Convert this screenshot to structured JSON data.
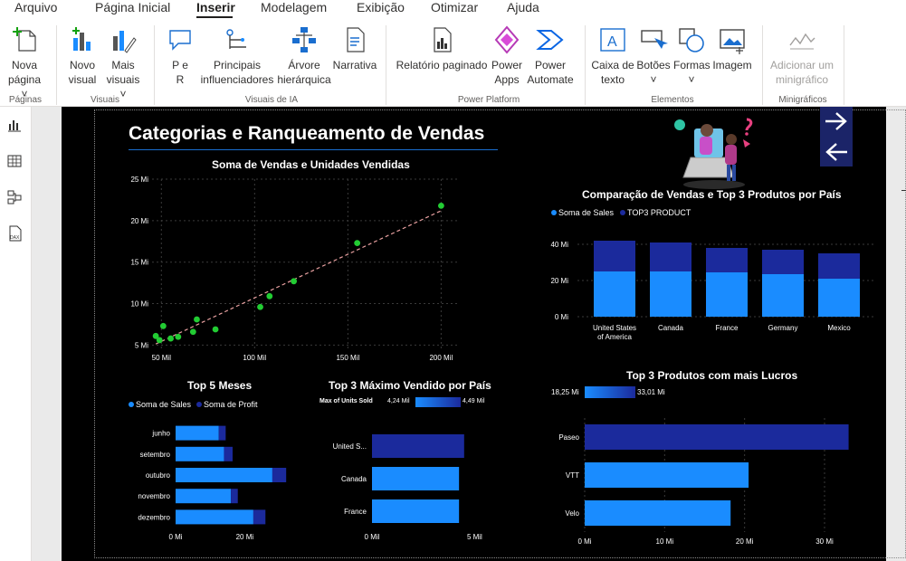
{
  "menu": {
    "items": [
      "Arquivo",
      "Página Inicial",
      "Inserir",
      "Modelagem",
      "Exibição",
      "Otimizar",
      "Ajuda"
    ],
    "active": "Inserir"
  },
  "ribbon": {
    "nova_pagina": [
      "Nova",
      "página"
    ],
    "novo_visual": [
      "Novo",
      "visual"
    ],
    "mais_visuais": [
      "Mais",
      "visuais"
    ],
    "p_e_r": [
      "P e",
      "R"
    ],
    "principais": [
      "Principais",
      "influenciadores"
    ],
    "arvore": [
      "Árvore",
      "hierárquica"
    ],
    "narrativa": "Narrativa",
    "relatorio": "Relatório paginado",
    "power_apps": [
      "Power",
      "Apps"
    ],
    "power_automate": [
      "Power",
      "Automate"
    ],
    "caixa_texto": [
      "Caixa de",
      "texto"
    ],
    "botoes": "Botões",
    "formas": "Formas",
    "imagem": "Imagem",
    "adicionar_mini": [
      "Adicionar um",
      "minigráfico"
    ],
    "groups": {
      "paginas": "Páginas",
      "visuais": "Visuais",
      "visuais_ia": "Visuais de IA",
      "power_platform": "Power Platform",
      "elementos": "Elementos",
      "minigraficos": "Minigráficos"
    }
  },
  "colors": {
    "accent": "#1a8cff",
    "dark_blue": "#1b2a9c",
    "scatter": "#22cc33",
    "trend": "#e8a0a0"
  },
  "report": {
    "title": "Categorias e Ranqueamento de Vendas"
  },
  "chart_data": [
    {
      "id": "scatter",
      "type": "scatter",
      "title": "Soma de Vendas e Unidades Vendidas",
      "x_ticks": [
        "50 Mil",
        "100 Mil",
        "150 Mil",
        "200 Mil"
      ],
      "x_tick_values": [
        50000,
        100000,
        150000,
        200000
      ],
      "y_ticks": [
        "5 Mi",
        "10 Mi",
        "15 Mi",
        "20 Mi",
        "25 Mi"
      ],
      "y_tick_values": [
        5,
        10,
        15,
        20,
        25
      ],
      "xlim": [
        45000,
        210000
      ],
      "ylim": [
        4.5,
        25
      ],
      "points": [
        [
          47000,
          6.1
        ],
        [
          49000,
          5.6
        ],
        [
          51000,
          7.3
        ],
        [
          55000,
          5.8
        ],
        [
          59000,
          6.0
        ],
        [
          67000,
          6.6
        ],
        [
          69000,
          8.1
        ],
        [
          79000,
          6.9
        ],
        [
          103000,
          9.6
        ],
        [
          108000,
          10.9
        ],
        [
          121000,
          12.7
        ],
        [
          155000,
          17.3
        ],
        [
          200000,
          21.8
        ]
      ],
      "trendline": true
    },
    {
      "id": "country_compare",
      "type": "bar",
      "title": "Comparação de Vendas e Top 3 Produtos por País",
      "legend": [
        "Soma de  Sales",
        "TOP3 PRODUCT"
      ],
      "categories": [
        "United States of America",
        "Canada",
        "France",
        "Germany",
        "Mexico"
      ],
      "category_lines": [
        [
          "United States",
          "of America"
        ],
        [
          "Canada"
        ],
        [
          "France"
        ],
        [
          "Germany"
        ],
        [
          "Mexico"
        ]
      ],
      "series": [
        {
          "name": "Soma de  Sales",
          "values": [
            25,
            25,
            24.5,
            23.5,
            21
          ]
        },
        {
          "name": "TOP3 PRODUCT",
          "values": [
            17,
            16,
            13.5,
            13.5,
            14
          ]
        }
      ],
      "y_ticks": [
        "0 Mi",
        "20 Mi",
        "40 Mi"
      ],
      "y_tick_values": [
        0,
        20,
        40
      ],
      "ylim": [
        0,
        44
      ]
    },
    {
      "id": "top5_meses",
      "type": "bar",
      "title": "Top 5 Meses",
      "legend": [
        "Soma de  Sales",
        "Soma de Profit"
      ],
      "categories": [
        "junho",
        "setembro",
        "outubro",
        "novembro",
        "dezembro"
      ],
      "series": [
        {
          "name": "Soma de  Sales",
          "values": [
            12.5,
            14,
            28,
            16,
            22.5
          ]
        },
        {
          "name": "Soma de Profit",
          "values": [
            2,
            2.5,
            4,
            2,
            3.5
          ]
        }
      ],
      "x_ticks": [
        "0 Mi",
        "20 Mi"
      ],
      "x_tick_values": [
        0,
        20
      ],
      "xlim": [
        0,
        33
      ]
    },
    {
      "id": "top3_max",
      "type": "bar",
      "title": "Top 3 Máximo Vendido por País",
      "legend_title": "Max of Units Sold",
      "legend_min": "4,24 Mil",
      "legend_max": "4,49 Mil",
      "categories": [
        "United S...",
        "Canada",
        "France"
      ],
      "values": [
        4.49,
        4.24,
        4.24
      ],
      "x_ticks": [
        "0 Mil",
        "5 Mil"
      ],
      "x_tick_values": [
        0,
        5
      ],
      "xlim": [
        0,
        5.6
      ]
    },
    {
      "id": "top3_lucros",
      "type": "bar",
      "title": "Top 3 Produtos com mais Lucros",
      "legend_min": "18,25 Mi",
      "legend_max": "33,01 Mi",
      "categories": [
        "Paseo",
        "VTT",
        "Velo"
      ],
      "values": [
        33.01,
        20.5,
        18.25
      ],
      "x_ticks": [
        "0 Mi",
        "10 Mi",
        "20 Mi",
        "30 Mi"
      ],
      "x_tick_values": [
        0,
        10,
        20,
        30
      ],
      "xlim": [
        0,
        36
      ]
    }
  ]
}
